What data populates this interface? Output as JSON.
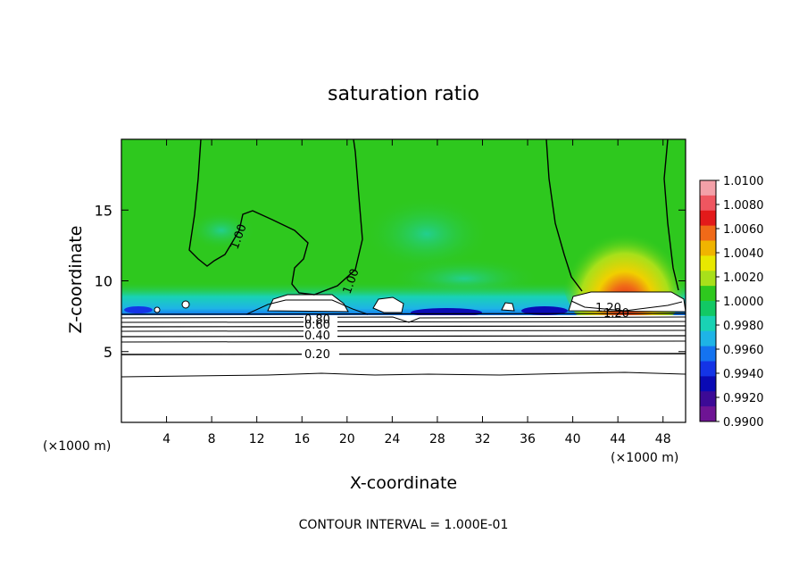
{
  "chart_data": {
    "type": "heatmap",
    "title": "saturation ratio",
    "xlabel": "X-coordinate",
    "ylabel": "Z-coordinate",
    "x_unit_label_left": "(×1000 m)",
    "x_unit_label_right": "(×1000 m)",
    "footer": "CONTOUR INTERVAL = 1.000E-01",
    "xlim": [
      0,
      50
    ],
    "ylim": [
      0,
      20
    ],
    "x_ticks": [
      4,
      8,
      12,
      16,
      20,
      24,
      28,
      32,
      36,
      40,
      44,
      48
    ],
    "y_ticks": [
      5,
      10,
      15
    ],
    "colorbar": {
      "min": 0.99,
      "max": 1.01,
      "tick_labels": [
        "1.0100",
        "1.0080",
        "1.0060",
        "1.0040",
        "1.0020",
        "1.0000",
        "0.9980",
        "0.9960",
        "0.9940",
        "0.9920",
        "0.9900"
      ],
      "colors": [
        "#f3a0a8",
        "#ef5660",
        "#e31a1a",
        "#f06a18",
        "#f0b400",
        "#e8e800",
        "#a8e01a",
        "#2ec81e",
        "#12c864",
        "#19d2b4",
        "#1eb4e6",
        "#1473f0",
        "#1434e6",
        "#0a0ab4",
        "#3c0a96",
        "#6e1494"
      ]
    },
    "contour_labels": [
      "1.00",
      "1.00",
      "1.20",
      "1.20",
      "0.80",
      "0.60",
      "0.40",
      "0.20"
    ],
    "contour_levels_below_cloud": [
      0.2,
      0.3,
      0.4,
      0.5,
      0.6,
      0.7,
      0.8,
      0.9
    ]
  }
}
